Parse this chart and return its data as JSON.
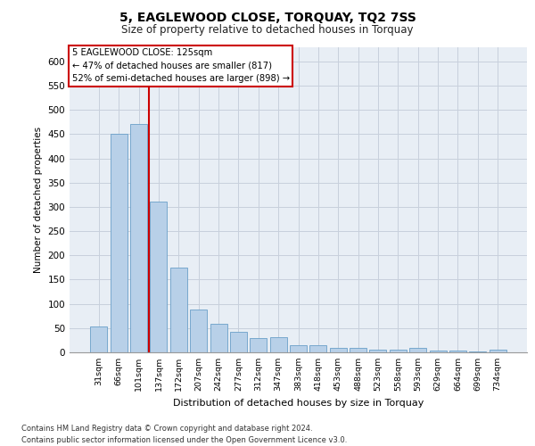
{
  "title1": "5, EAGLEWOOD CLOSE, TORQUAY, TQ2 7SS",
  "title2": "Size of property relative to detached houses in Torquay",
  "xlabel": "Distribution of detached houses by size in Torquay",
  "ylabel": "Number of detached properties",
  "categories": [
    "31sqm",
    "66sqm",
    "101sqm",
    "137sqm",
    "172sqm",
    "207sqm",
    "242sqm",
    "277sqm",
    "312sqm",
    "347sqm",
    "383sqm",
    "418sqm",
    "453sqm",
    "488sqm",
    "523sqm",
    "558sqm",
    "593sqm",
    "629sqm",
    "664sqm",
    "699sqm",
    "734sqm"
  ],
  "values": [
    54,
    450,
    471,
    311,
    175,
    88,
    58,
    43,
    30,
    32,
    15,
    15,
    10,
    10,
    6,
    6,
    9,
    4,
    4,
    1,
    5
  ],
  "bar_color": "#b8d0e8",
  "bar_edge_color": "#6a9fc8",
  "grid_color": "#c8d0dc",
  "bg_color": "#e8eef5",
  "vline_color": "#cc0000",
  "vline_x": 2.5,
  "annotation_title": "5 EAGLEWOOD CLOSE: 125sqm",
  "annotation_line1": "← 47% of detached houses are smaller (817)",
  "annotation_line2": "52% of semi-detached houses are larger (898) →",
  "annotation_box_facecolor": "#ffffff",
  "annotation_box_edgecolor": "#cc0000",
  "footer1": "Contains HM Land Registry data © Crown copyright and database right 2024.",
  "footer2": "Contains public sector information licensed under the Open Government Licence v3.0.",
  "ylim": [
    0,
    630
  ],
  "yticks": [
    0,
    50,
    100,
    150,
    200,
    250,
    300,
    350,
    400,
    450,
    500,
    550,
    600
  ],
  "figsize": [
    6.0,
    5.0
  ],
  "dpi": 100
}
